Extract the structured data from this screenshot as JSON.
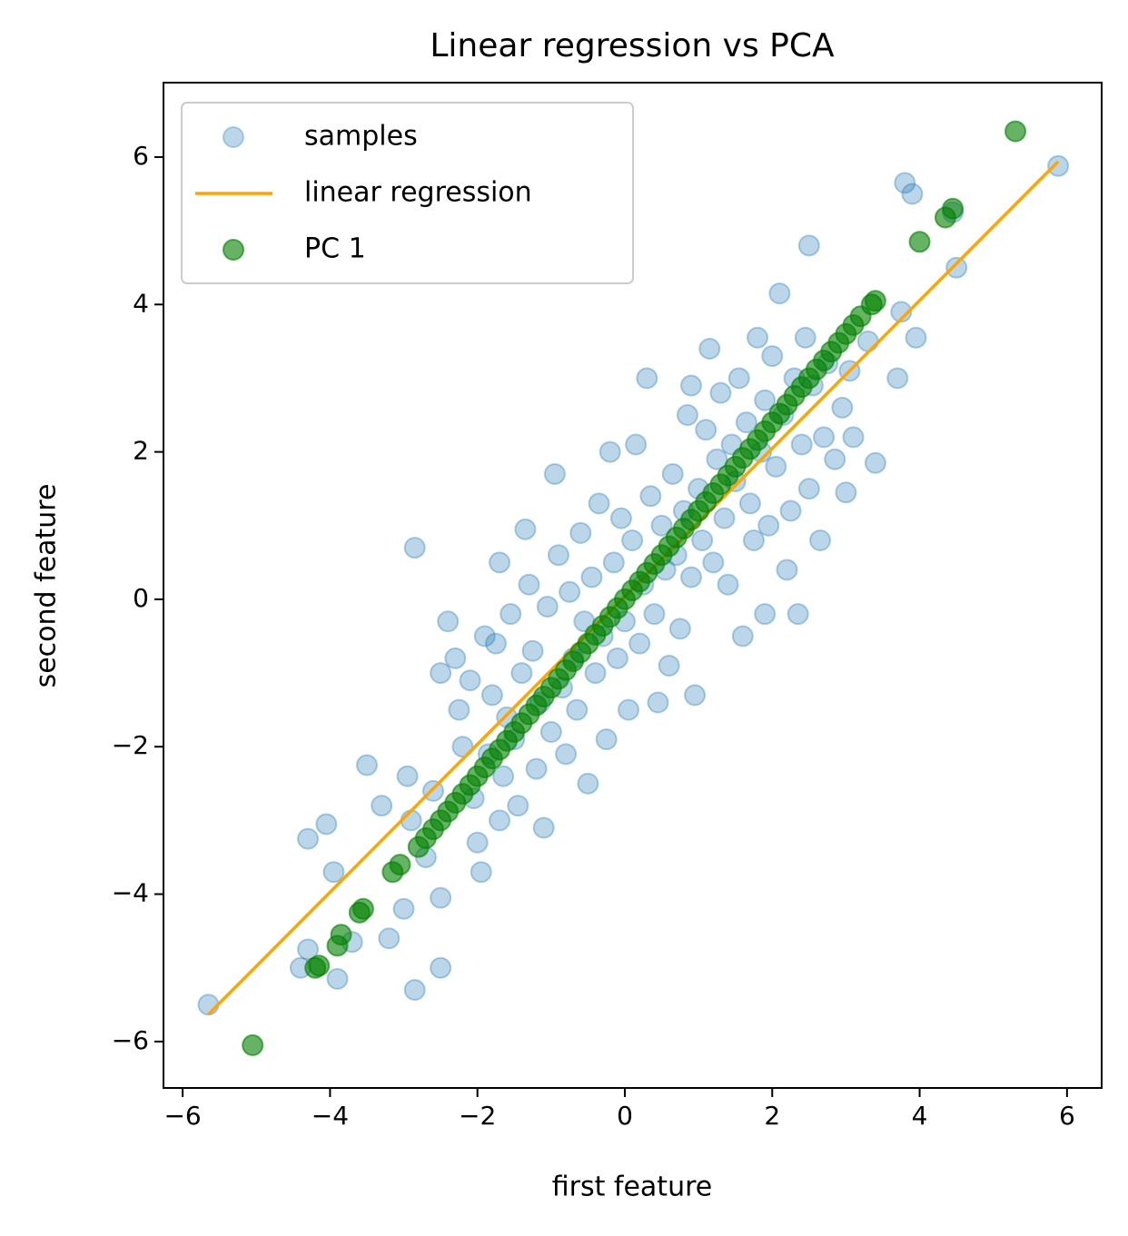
{
  "chart_data": {
    "type": "scatter",
    "title": "Linear regression vs PCA",
    "xlabel": "first feature",
    "ylabel": "second feature",
    "xlim": [
      -6.26,
      6.47
    ],
    "ylim": [
      -6.63,
      7.01
    ],
    "xticks": [
      {
        "value": -6,
        "label": "−6"
      },
      {
        "value": -4,
        "label": "−4"
      },
      {
        "value": -2,
        "label": "−2"
      },
      0,
      2,
      4,
      6
    ],
    "yticks": [
      {
        "value": -6,
        "label": "−6"
      },
      {
        "value": -4,
        "label": "−4"
      },
      {
        "value": -2,
        "label": "−2"
      },
      0,
      2,
      4,
      6
    ],
    "grid": false,
    "legend": "upper left",
    "series": [
      {
        "name": "samples",
        "type": "scatter",
        "color": "#1f77b4",
        "x": [
          -5.65,
          -4.4,
          -4.3,
          -4.3,
          -4.05,
          -3.95,
          -3.9,
          -3.7,
          -3.5,
          -3.3,
          -3.2,
          -3.0,
          -2.95,
          -2.9,
          -2.85,
          -2.85,
          -2.7,
          -2.6,
          -2.5,
          -2.5,
          -2.5,
          -2.4,
          -2.3,
          -2.25,
          -2.2,
          -2.1,
          -2.05,
          -2.0,
          -1.95,
          -1.9,
          -1.85,
          -1.8,
          -1.75,
          -1.7,
          -1.7,
          -1.65,
          -1.6,
          -1.55,
          -1.5,
          -1.45,
          -1.4,
          -1.35,
          -1.3,
          -1.25,
          -1.2,
          -1.15,
          -1.1,
          -1.05,
          -1.0,
          -0.95,
          -0.9,
          -0.85,
          -0.8,
          -0.75,
          -0.7,
          -0.65,
          -0.6,
          -0.55,
          -0.5,
          -0.45,
          -0.4,
          -0.35,
          -0.3,
          -0.25,
          -0.2,
          -0.15,
          -0.1,
          -0.05,
          0.0,
          0.05,
          0.1,
          0.15,
          0.2,
          0.25,
          0.3,
          0.35,
          0.4,
          0.45,
          0.5,
          0.55,
          0.6,
          0.65,
          0.7,
          0.75,
          0.8,
          0.85,
          0.9,
          0.9,
          0.95,
          1.0,
          1.05,
          1.1,
          1.15,
          1.2,
          1.25,
          1.3,
          1.35,
          1.4,
          1.45,
          1.5,
          1.55,
          1.6,
          1.65,
          1.7,
          1.75,
          1.8,
          1.85,
          1.9,
          1.9,
          1.95,
          2.0,
          2.05,
          2.1,
          2.15,
          2.2,
          2.25,
          2.3,
          2.35,
          2.4,
          2.45,
          2.5,
          2.5,
          2.55,
          2.65,
          2.7,
          2.75,
          2.85,
          2.95,
          3.0,
          3.05,
          3.1,
          3.3,
          3.4,
          3.75,
          3.7,
          3.8,
          3.9,
          3.95,
          4.45,
          4.5,
          5.88
        ],
        "y": [
          -5.5,
          -5.0,
          -3.25,
          -4.75,
          -3.05,
          -3.7,
          -5.15,
          -4.65,
          -2.25,
          -2.8,
          -4.6,
          -4.2,
          -2.4,
          -3.0,
          -5.3,
          0.7,
          -3.5,
          -2.6,
          -5.0,
          -4.05,
          -1.0,
          -0.3,
          -0.8,
          -1.5,
          -2.0,
          -1.1,
          -2.7,
          -3.3,
          -3.7,
          -0.5,
          -2.1,
          -1.3,
          -0.6,
          -3.0,
          0.5,
          -2.4,
          -1.6,
          -0.2,
          -1.9,
          -2.8,
          -1.0,
          0.95,
          0.2,
          -0.7,
          -2.3,
          -1.4,
          -3.1,
          -0.1,
          -1.8,
          1.7,
          0.6,
          -1.2,
          -2.1,
          0.1,
          -0.8,
          -1.5,
          0.9,
          -0.3,
          -2.5,
          0.3,
          -1.0,
          1.3,
          -0.5,
          -1.9,
          2.0,
          0.5,
          -0.8,
          1.1,
          -0.3,
          -1.5,
          0.8,
          2.1,
          -0.6,
          0.2,
          3.0,
          1.4,
          -0.2,
          -1.4,
          1.0,
          0.4,
          -0.9,
          1.7,
          0.6,
          -0.4,
          1.2,
          2.5,
          0.3,
          2.9,
          -1.3,
          1.5,
          0.8,
          2.3,
          3.4,
          0.5,
          1.9,
          2.8,
          1.1,
          0.2,
          2.1,
          1.6,
          3.0,
          -0.5,
          2.4,
          1.3,
          0.8,
          3.55,
          2.0,
          2.7,
          -0.2,
          1.0,
          3.3,
          1.8,
          4.15,
          2.5,
          0.4,
          1.2,
          3.0,
          -0.2,
          2.1,
          3.55,
          1.5,
          4.8,
          2.9,
          0.8,
          2.2,
          3.2,
          1.9,
          2.6,
          1.45,
          3.1,
          2.2,
          3.5,
          1.85,
          3.9,
          3.0,
          5.65,
          5.5,
          3.55,
          5.25,
          4.5,
          5.88
        ]
      },
      {
        "name": "linear regression",
        "type": "line",
        "color": "#ffa500",
        "x": [
          -5.65,
          5.88
        ],
        "y": [
          -5.63,
          5.94
        ]
      },
      {
        "name": "PC 1",
        "type": "scatter",
        "color": "#008000",
        "x": [
          -5.05,
          5.3,
          4.35,
          4.45,
          4.0,
          3.4,
          3.35,
          -4.2,
          -4.15,
          -3.55,
          -3.6,
          -3.85,
          -3.9,
          -3.15,
          -3.05,
          -2.8,
          -2.7,
          -2.6,
          -2.5,
          -2.4,
          -2.3,
          -2.2,
          -2.1,
          -2.0,
          -1.9,
          -1.8,
          -1.7,
          -1.6,
          -1.5,
          -1.4,
          -1.3,
          -1.2,
          -1.1,
          -1.0,
          -0.9,
          -0.8,
          -0.7,
          -0.6,
          -0.5,
          -0.4,
          -0.3,
          -0.2,
          -0.1,
          0,
          0.1,
          0.2,
          0.3,
          0.4,
          0.5,
          0.6,
          0.7,
          0.8,
          0.9,
          1.0,
          1.1,
          1.2,
          1.3,
          1.4,
          1.5,
          1.6,
          1.7,
          1.8,
          1.9,
          2.0,
          2.1,
          2.2,
          2.3,
          2.4,
          2.5,
          2.6,
          2.7,
          2.8,
          2.9,
          3.0,
          3.1,
          3.2
        ],
        "y": [
          -6.05,
          6.35,
          5.18,
          5.3,
          4.85,
          4.05,
          4.0,
          -5.0,
          -4.97,
          -4.2,
          -4.25,
          -4.55,
          -4.7,
          -3.7,
          -3.6,
          -3.36,
          -3.24,
          -3.12,
          -3.0,
          -2.88,
          -2.76,
          -2.64,
          -2.52,
          -2.4,
          -2.28,
          -2.16,
          -2.04,
          -1.92,
          -1.8,
          -1.68,
          -1.56,
          -1.44,
          -1.32,
          -1.2,
          -1.08,
          -0.96,
          -0.84,
          -0.72,
          -0.6,
          -0.48,
          -0.36,
          -0.24,
          -0.12,
          0,
          0.12,
          0.24,
          0.36,
          0.48,
          0.6,
          0.72,
          0.84,
          0.96,
          1.08,
          1.2,
          1.32,
          1.44,
          1.56,
          1.68,
          1.8,
          1.92,
          2.04,
          2.16,
          2.28,
          2.4,
          2.52,
          2.64,
          2.76,
          2.88,
          3.0,
          3.12,
          3.24,
          3.36,
          3.48,
          3.6,
          3.72,
          3.84
        ]
      }
    ]
  }
}
